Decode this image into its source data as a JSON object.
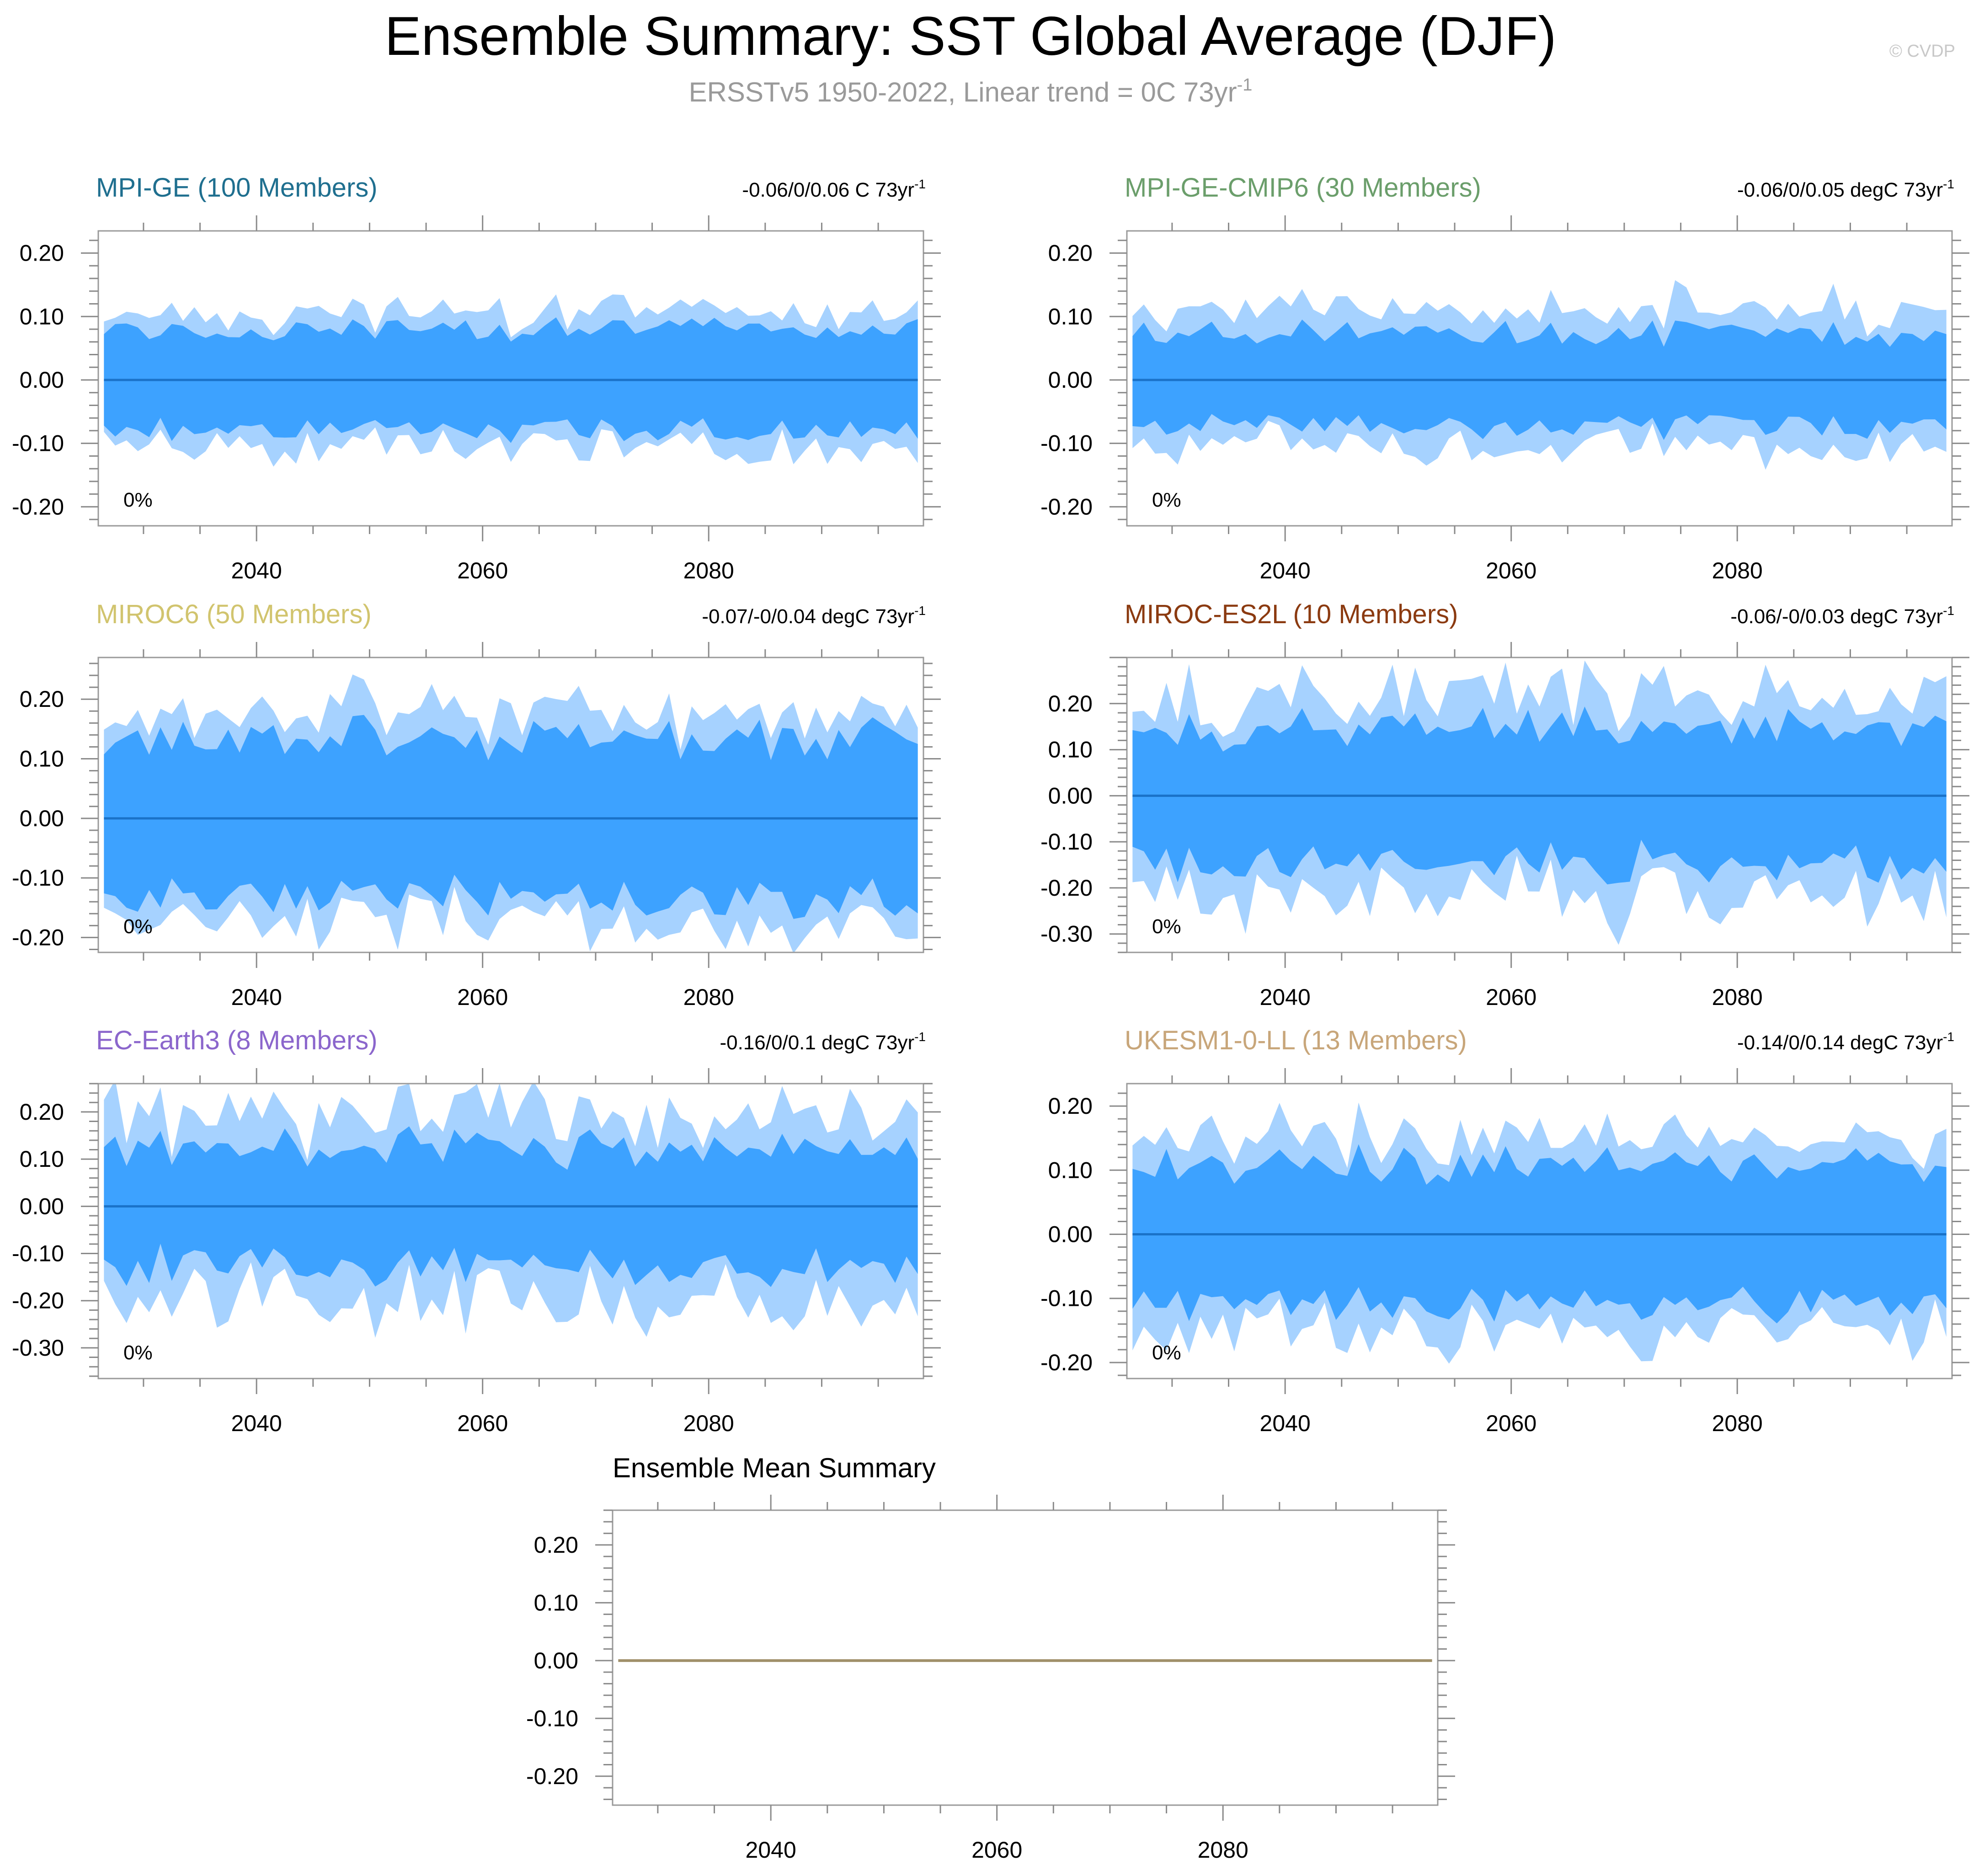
{
  "title": "Ensemble Summary: SST Global Average (DJF)",
  "subtitle_main": "ERSSTv5 1950-2022, Linear trend = 0C 73yr",
  "subtitle_sup": "-1",
  "watermark": "© CVDP",
  "colors": {
    "band_outer": "#a6d2ff",
    "band_inner": "#3da2ff",
    "zero_line": "#1a72c8",
    "frame": "#9a9a9a",
    "subtitle": "#9a9a9a",
    "watermark": "#c8c8c8"
  },
  "chart_data": [
    {
      "type": "area",
      "panel_id": "mpi-ge",
      "model": "MPI-GE (100 Members)",
      "model_color": "#1f6f8f",
      "trend_text": "-0.06/0/0.06 C 73yr",
      "trend_sup": "-1",
      "corner_text": "0%",
      "xlim": [
        2026,
        2099
      ],
      "x_ticks": [
        2040,
        2060,
        2080
      ],
      "ylim": [
        -0.23,
        0.235
      ],
      "y_ticks": [
        -0.2,
        -0.1,
        0.0,
        0.1,
        0.2
      ],
      "y_tick_labels": [
        "-0.20",
        "-0.10",
        "0.00",
        "0.10",
        "0.20"
      ],
      "sigma": 0.062,
      "amp_outer": 0.022,
      "amp_inner": 0.008,
      "seed": 11
    },
    {
      "type": "area",
      "panel_id": "mpi-ge-cmip6",
      "model": "MPI-GE-CMIP6 (30 Members)",
      "model_color": "#6b9e6b",
      "trend_text": "-0.06/0/0.05 degC 73yr",
      "trend_sup": "-1",
      "corner_text": "0%",
      "xlim": [
        2026,
        2099
      ],
      "x_ticks": [
        2040,
        2060,
        2080
      ],
      "ylim": [
        -0.23,
        0.235
      ],
      "y_ticks": [
        -0.2,
        -0.1,
        0.0,
        0.1,
        0.2
      ],
      "y_tick_labels": [
        "-0.20",
        "-0.10",
        "0.00",
        "0.10",
        "0.20"
      ],
      "sigma": 0.058,
      "amp_outer": 0.03,
      "amp_inner": 0.013,
      "seed": 23
    },
    {
      "type": "area",
      "panel_id": "miroc6",
      "model": "MIROC6 (50 Members)",
      "model_color": "#d1c46e",
      "trend_text": "-0.07/-0/0.04 degC 73yr",
      "trend_sup": "-1",
      "corner_text": "0%",
      "xlim": [
        2026,
        2099
      ],
      "x_ticks": [
        2040,
        2060,
        2080
      ],
      "ylim": [
        -0.225,
        0.27
      ],
      "y_ticks": [
        -0.2,
        -0.1,
        0.0,
        0.1,
        0.2
      ],
      "y_tick_labels": [
        "-0.20",
        "-0.10",
        "0.00",
        "0.10",
        "0.20"
      ],
      "sigma": 0.105,
      "amp_outer": 0.035,
      "amp_inner": 0.022,
      "seed": 37
    },
    {
      "type": "area",
      "panel_id": "miroc-es2l",
      "model": "MIROC-ES2L (10 Members)",
      "model_color": "#8b3a10",
      "trend_text": "-0.06/-0/0.03 degC 73yr",
      "trend_sup": "-1",
      "corner_text": "0%",
      "xlim": [
        2026,
        2099
      ],
      "x_ticks": [
        2040,
        2060,
        2080
      ],
      "ylim": [
        -0.34,
        0.3
      ],
      "y_ticks": [
        -0.3,
        -0.2,
        -0.1,
        0.0,
        0.1,
        0.2
      ],
      "y_tick_labels": [
        "-0.30",
        "-0.20",
        "-0.10",
        "0.00",
        "0.10",
        "0.20"
      ],
      "sigma": 0.115,
      "amp_outer": 0.06,
      "amp_inner": 0.045,
      "seed": 53
    },
    {
      "type": "area",
      "panel_id": "ec-earth3",
      "model": "EC-Earth3 (8 Members)",
      "model_color": "#8b66cc",
      "trend_text": "-0.16/0/0.1 degC 73yr",
      "trend_sup": "-1",
      "corner_text": "0%",
      "xlim": [
        2026,
        2099
      ],
      "x_ticks": [
        2040,
        2060,
        2080
      ],
      "ylim": [
        -0.365,
        0.26
      ],
      "y_ticks": [
        -0.3,
        -0.2,
        -0.1,
        0.0,
        0.1,
        0.2
      ],
      "y_tick_labels": [
        "-0.30",
        "-0.20",
        "-0.10",
        "0.00",
        "0.10",
        "0.20"
      ],
      "sigma": 0.1,
      "amp_outer": 0.06,
      "amp_inner": 0.045,
      "seed": 71
    },
    {
      "type": "area",
      "panel_id": "ukesm1-0-ll",
      "model": "UKESM1-0-LL (13 Members)",
      "model_color": "#c8a67a",
      "trend_text": "-0.14/0/0.14 degC 73yr",
      "trend_sup": "-1",
      "corner_text": "0%",
      "xlim": [
        2026,
        2099
      ],
      "x_ticks": [
        2040,
        2060,
        2080
      ],
      "ylim": [
        -0.225,
        0.235
      ],
      "y_ticks": [
        -0.2,
        -0.1,
        0.0,
        0.1,
        0.2
      ],
      "y_tick_labels": [
        "-0.20",
        "-0.10",
        "0.00",
        "0.10",
        "0.20"
      ],
      "sigma": 0.085,
      "amp_outer": 0.035,
      "amp_inner": 0.018,
      "seed": 89
    },
    {
      "type": "line",
      "panel_id": "ensemble-mean",
      "title": "Ensemble Mean Summary",
      "xlim": [
        2026,
        2099
      ],
      "x_ticks": [
        2040,
        2060,
        2080
      ],
      "ylim": [
        -0.25,
        0.26
      ],
      "y_ticks": [
        -0.2,
        -0.1,
        0.0,
        0.1,
        0.2
      ],
      "y_tick_labels": [
        "-0.20",
        "-0.10",
        "0.00",
        "0.10",
        "0.20"
      ],
      "line_x": [
        2026,
        2099
      ],
      "line_y": [
        0.0,
        0.0
      ],
      "line_color": "#a0906a"
    }
  ]
}
